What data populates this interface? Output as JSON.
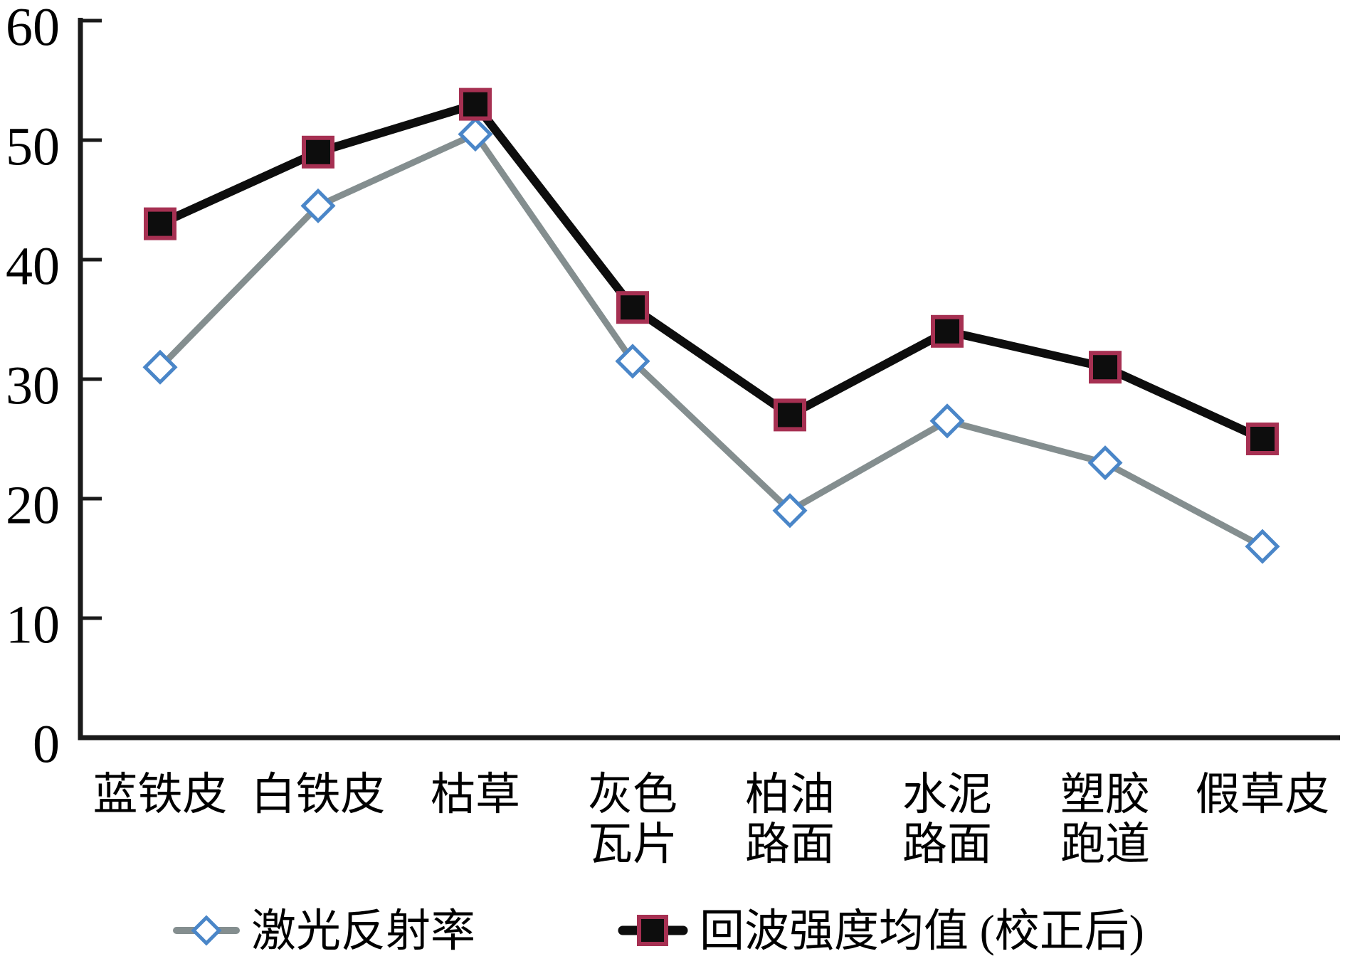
{
  "figure": {
    "background": "#FFFFFF",
    "axis_color": "#1A1A1A",
    "text_color": "#000000"
  },
  "chart_data": {
    "type": "line",
    "title": "",
    "xlabel": "",
    "ylabel": "",
    "ylim": [
      0,
      60
    ],
    "yticks": [
      0,
      10,
      20,
      30,
      40,
      50,
      60
    ],
    "ytick_labels": [
      "0",
      "10",
      "20",
      "30",
      "40",
      "50",
      "60"
    ],
    "grid": false,
    "legend_position": "bottom",
    "categories": [
      "蓝铁皮",
      "白铁皮",
      "枯草",
      "灰色瓦片",
      "柏油路面",
      "水泥路面",
      "塑胶跑道",
      "假草皮"
    ],
    "category_label_lines": [
      [
        "蓝铁皮"
      ],
      [
        "白铁皮"
      ],
      [
        "枯草"
      ],
      [
        "灰色",
        "瓦片"
      ],
      [
        "柏油",
        "路面"
      ],
      [
        "水泥",
        "路面"
      ],
      [
        "塑胶",
        "跑道"
      ],
      [
        "假草皮"
      ]
    ],
    "series": [
      {
        "name": "激光反射率",
        "marker": "diamond",
        "line_color": "#848E8F",
        "marker_fill": "#FFFFFF",
        "marker_stroke": "#4A86C8",
        "values": [
          31,
          44.5,
          50.5,
          31.5,
          19,
          26.5,
          23,
          16
        ]
      },
      {
        "name": "回波强度均值 (校正后)",
        "marker": "square",
        "line_color": "#0D0D0D",
        "marker_fill": "#0D0D0D",
        "marker_stroke": "#A63052",
        "values": [
          43,
          49,
          53,
          36,
          27,
          34,
          31,
          25
        ]
      }
    ]
  }
}
